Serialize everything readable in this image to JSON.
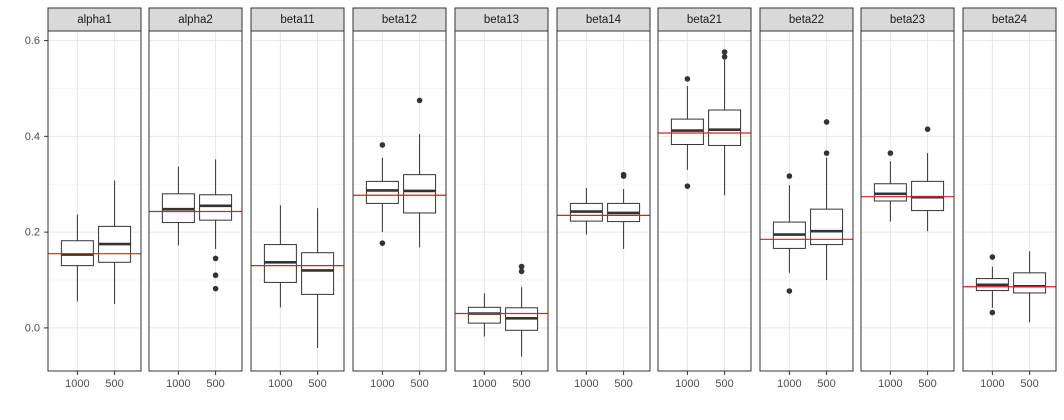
{
  "chart_data": {
    "type": "boxplot",
    "facet_layout": "single-row",
    "categories": [
      "1000",
      "500"
    ],
    "y_ticks": [
      "0.0",
      "0.2",
      "0.4",
      "0.6"
    ],
    "ylim": [
      -0.09,
      0.62
    ],
    "reference_line_color": "#e41a1c",
    "panels": [
      {
        "name": "alpha1",
        "reference": 0.155,
        "boxes": [
          {
            "category": "1000",
            "lower_whisker": 0.055,
            "q1": 0.13,
            "median": 0.153,
            "q3": 0.182,
            "upper_whisker": 0.237,
            "outliers": []
          },
          {
            "category": "500",
            "lower_whisker": 0.05,
            "q1": 0.137,
            "median": 0.175,
            "q3": 0.212,
            "upper_whisker": 0.308,
            "outliers": []
          }
        ]
      },
      {
        "name": "alpha2",
        "reference": 0.243,
        "boxes": [
          {
            "category": "1000",
            "lower_whisker": 0.172,
            "q1": 0.22,
            "median": 0.248,
            "q3": 0.28,
            "upper_whisker": 0.337,
            "outliers": []
          },
          {
            "category": "500",
            "lower_whisker": 0.165,
            "q1": 0.225,
            "median": 0.255,
            "q3": 0.278,
            "upper_whisker": 0.352,
            "outliers": [
              0.145,
              0.11,
              0.082
            ]
          }
        ]
      },
      {
        "name": "beta11",
        "reference": 0.13,
        "boxes": [
          {
            "category": "1000",
            "lower_whisker": 0.043,
            "q1": 0.095,
            "median": 0.137,
            "q3": 0.174,
            "upper_whisker": 0.256,
            "outliers": []
          },
          {
            "category": "500",
            "lower_whisker": -0.042,
            "q1": 0.07,
            "median": 0.12,
            "q3": 0.157,
            "upper_whisker": 0.25,
            "outliers": []
          }
        ]
      },
      {
        "name": "beta12",
        "reference": 0.277,
        "boxes": [
          {
            "category": "1000",
            "lower_whisker": 0.2,
            "q1": 0.26,
            "median": 0.287,
            "q3": 0.306,
            "upper_whisker": 0.355,
            "outliers": [
              0.382,
              0.177
            ]
          },
          {
            "category": "500",
            "lower_whisker": 0.168,
            "q1": 0.24,
            "median": 0.286,
            "q3": 0.32,
            "upper_whisker": 0.405,
            "outliers": [
              0.475
            ]
          }
        ]
      },
      {
        "name": "beta13",
        "reference": 0.03,
        "boxes": [
          {
            "category": "1000",
            "lower_whisker": -0.018,
            "q1": 0.01,
            "median": 0.03,
            "q3": 0.043,
            "upper_whisker": 0.072,
            "outliers": []
          },
          {
            "category": "500",
            "lower_whisker": -0.06,
            "q1": -0.005,
            "median": 0.02,
            "q3": 0.042,
            "upper_whisker": 0.085,
            "outliers": [
              0.128,
              0.118
            ]
          }
        ]
      },
      {
        "name": "beta14",
        "reference": 0.235,
        "boxes": [
          {
            "category": "1000",
            "lower_whisker": 0.195,
            "q1": 0.223,
            "median": 0.243,
            "q3": 0.26,
            "upper_whisker": 0.292,
            "outliers": []
          },
          {
            "category": "500",
            "lower_whisker": 0.165,
            "q1": 0.222,
            "median": 0.24,
            "q3": 0.26,
            "upper_whisker": 0.29,
            "outliers": [
              0.32,
              0.317
            ]
          }
        ]
      },
      {
        "name": "beta21",
        "reference": 0.407,
        "boxes": [
          {
            "category": "1000",
            "lower_whisker": 0.33,
            "q1": 0.383,
            "median": 0.412,
            "q3": 0.436,
            "upper_whisker": 0.505,
            "outliers": [
              0.52,
              0.296
            ]
          },
          {
            "category": "500",
            "lower_whisker": 0.277,
            "q1": 0.381,
            "median": 0.414,
            "q3": 0.455,
            "upper_whisker": 0.56,
            "outliers": [
              0.576,
              0.566
            ]
          }
        ]
      },
      {
        "name": "beta22",
        "reference": 0.185,
        "boxes": [
          {
            "category": "1000",
            "lower_whisker": 0.115,
            "q1": 0.166,
            "median": 0.195,
            "q3": 0.221,
            "upper_whisker": 0.298,
            "outliers": [
              0.317,
              0.077
            ]
          },
          {
            "category": "500",
            "lower_whisker": 0.1,
            "q1": 0.174,
            "median": 0.202,
            "q3": 0.248,
            "upper_whisker": 0.355,
            "outliers": [
              0.43,
              0.365
            ]
          }
        ]
      },
      {
        "name": "beta23",
        "reference": 0.274,
        "boxes": [
          {
            "category": "1000",
            "lower_whisker": 0.222,
            "q1": 0.265,
            "median": 0.28,
            "q3": 0.301,
            "upper_whisker": 0.348,
            "outliers": [
              0.365
            ]
          },
          {
            "category": "500",
            "lower_whisker": 0.202,
            "q1": 0.245,
            "median": 0.273,
            "q3": 0.306,
            "upper_whisker": 0.365,
            "outliers": [
              0.415
            ]
          }
        ]
      },
      {
        "name": "beta24",
        "reference": 0.086,
        "boxes": [
          {
            "category": "1000",
            "lower_whisker": 0.042,
            "q1": 0.078,
            "median": 0.09,
            "q3": 0.103,
            "upper_whisker": 0.128,
            "outliers": [
              0.148,
              0.032
            ]
          },
          {
            "category": "500",
            "lower_whisker": 0.012,
            "q1": 0.073,
            "median": 0.087,
            "q3": 0.115,
            "upper_whisker": 0.16,
            "outliers": []
          }
        ]
      }
    ]
  }
}
